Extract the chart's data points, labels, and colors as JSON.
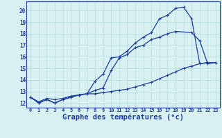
{
  "line1_x": [
    0,
    1,
    2,
    3,
    4,
    5,
    6,
    7,
    8,
    9,
    10,
    11,
    12,
    13,
    14,
    15,
    16,
    17,
    18,
    19,
    20,
    21,
    22
  ],
  "line1_y": [
    12.5,
    12.0,
    12.3,
    12.0,
    12.3,
    12.5,
    12.7,
    12.8,
    13.9,
    14.5,
    15.9,
    16.0,
    16.5,
    17.2,
    17.7,
    18.1,
    19.3,
    19.6,
    20.2,
    20.3,
    19.3,
    15.4,
    15.5
  ],
  "line2_x": [
    0,
    1,
    2,
    3,
    4,
    5,
    6,
    7,
    8,
    9,
    10,
    11,
    12,
    13,
    14,
    15,
    16,
    17,
    18,
    20,
    21,
    22,
    23
  ],
  "line2_y": [
    12.5,
    12.0,
    12.3,
    12.0,
    12.3,
    12.5,
    12.7,
    12.8,
    13.1,
    13.3,
    14.8,
    15.9,
    16.2,
    16.8,
    17.0,
    17.5,
    17.7,
    18.0,
    18.2,
    18.1,
    17.4,
    15.4,
    15.5
  ],
  "line3_x": [
    0,
    1,
    2,
    3,
    4,
    5,
    6,
    7,
    8,
    9,
    10,
    11,
    12,
    13,
    14,
    15,
    16,
    17,
    18,
    19,
    20,
    21,
    22,
    23
  ],
  "line3_y": [
    12.5,
    12.1,
    12.4,
    12.3,
    12.4,
    12.6,
    12.7,
    12.8,
    12.8,
    12.9,
    13.0,
    13.1,
    13.2,
    13.4,
    13.6,
    13.8,
    14.1,
    14.4,
    14.7,
    15.0,
    15.2,
    15.4,
    15.5,
    15.5
  ],
  "line_color": "#1a3a9e",
  "bg_color": "#d8f0f0",
  "grid_color": "#b0d8d8",
  "xlabel": "Graphe des températures (°c)",
  "xlabel_fontsize": 7.5,
  "xticks": [
    0,
    1,
    2,
    3,
    4,
    5,
    6,
    7,
    8,
    9,
    10,
    11,
    12,
    13,
    14,
    15,
    16,
    17,
    18,
    19,
    20,
    21,
    22,
    23
  ],
  "xtick_labels": [
    "0",
    "1",
    "2",
    "3",
    "4",
    "5",
    "6",
    "7",
    "8",
    "9",
    "10",
    "11",
    "12",
    "13",
    "14",
    "15",
    "16",
    "17",
    "18",
    "19",
    "20",
    "21",
    "22",
    "23"
  ],
  "yticks": [
    12,
    13,
    14,
    15,
    16,
    17,
    18,
    19,
    20
  ],
  "ylim": [
    11.6,
    20.8
  ],
  "xlim": [
    -0.5,
    23.5
  ],
  "figwidth": 3.2,
  "figheight": 2.0,
  "dpi": 100
}
